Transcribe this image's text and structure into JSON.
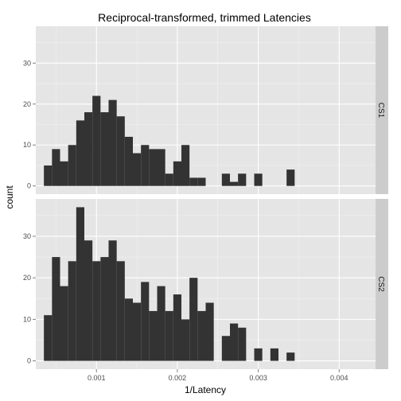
{
  "chart_data": {
    "type": "bar",
    "title": "Reciprocal-transformed, trimmed Latencies",
    "xlabel": "1/Latency",
    "ylabel": "count",
    "bin_width": 0.0001,
    "bin_start": 0.00035,
    "xlim": [
      0.00025,
      0.00445
    ],
    "x_ticks": [
      0.001,
      0.002,
      0.003,
      0.004
    ],
    "x_tick_labels": [
      "0.001",
      "0.002",
      "0.003",
      "0.004"
    ],
    "grid": true,
    "panels": [
      {
        "name": "CS1",
        "ylim": [
          -2,
          39
        ],
        "y_ticks": [
          0,
          10,
          20,
          30
        ],
        "y_tick_labels": [
          "0",
          "10",
          "20",
          "30"
        ],
        "values": [
          5,
          9,
          6,
          10,
          16,
          18,
          22,
          18,
          21,
          17,
          12,
          8,
          10,
          9,
          9,
          3,
          6,
          10,
          2,
          2,
          0,
          0,
          3,
          1,
          3,
          0,
          3,
          0,
          0,
          0,
          4
        ]
      },
      {
        "name": "CS2",
        "ylim": [
          -2,
          39
        ],
        "y_ticks": [
          0,
          10,
          20,
          30
        ],
        "y_tick_labels": [
          "0",
          "10",
          "20",
          "30"
        ],
        "values": [
          11,
          25,
          18,
          24,
          37,
          29,
          24,
          25,
          29,
          24,
          15,
          14,
          19,
          12,
          18,
          12,
          16,
          10,
          20,
          12,
          14,
          0,
          6,
          9,
          8,
          0,
          3,
          0,
          3,
          0,
          2
        ]
      }
    ]
  }
}
